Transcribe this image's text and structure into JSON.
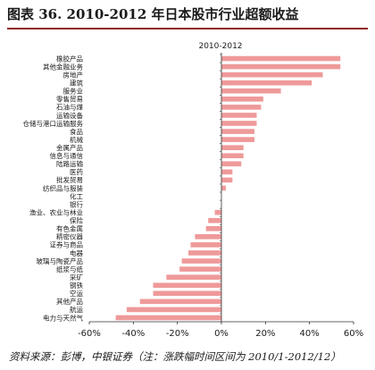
{
  "header": {
    "title": "图表 36. 2010-2012 年日本股市行业超额收益"
  },
  "footer": {
    "source": "资料来源：彭博，中银证券（注：涨跌幅时间区间为 2010/1-2012/12）"
  },
  "colors": {
    "bar": "#ee9a99",
    "axis": "#333333",
    "title_rule": "#8c1d1d"
  },
  "chart_data": {
    "type": "bar",
    "orientation": "horizontal",
    "title": "",
    "xlabel": "",
    "ylabel": "",
    "xlim": [
      -0.6,
      0.6
    ],
    "x_ticks": [
      -0.6,
      -0.4,
      -0.2,
      0,
      0.2,
      0.4,
      0.6
    ],
    "x_tick_labels": [
      "-60%",
      "-40%",
      "-20%",
      "0%",
      "20%",
      "40%",
      "60%"
    ],
    "grid": false,
    "legend_position": "top",
    "series": [
      {
        "name": "2010-2012",
        "color": "#ee9a99"
      }
    ],
    "categories": [
      "橡胶产品",
      "其他金融业务",
      "房地产",
      "建筑",
      "服务业",
      "零售贸易",
      "石油与煤",
      "运输设备",
      "仓储与港口运输服务",
      "食品",
      "机械",
      "金属产品",
      "信息与通信",
      "陆路运输",
      "医药",
      "批发贸易",
      "纺织品与服装",
      "化工",
      "银行",
      "渔业、农业与林业",
      "保险",
      "有色金属",
      "精密仪器",
      "证券与商品",
      "电器",
      "玻璃与陶瓷产品",
      "纸浆与纸",
      "采矿",
      "钢铁",
      "空运",
      "其他产品",
      "航运",
      "电力与天然气"
    ],
    "values": [
      0.54,
      0.54,
      0.46,
      0.41,
      0.27,
      0.19,
      0.18,
      0.16,
      0.16,
      0.15,
      0.15,
      0.1,
      0.1,
      0.09,
      0.05,
      0.05,
      0.02,
      0.0,
      0.0,
      -0.03,
      -0.06,
      -0.07,
      -0.12,
      -0.14,
      -0.15,
      -0.18,
      -0.19,
      -0.25,
      -0.31,
      -0.31,
      -0.37,
      -0.43,
      -0.48
    ]
  }
}
